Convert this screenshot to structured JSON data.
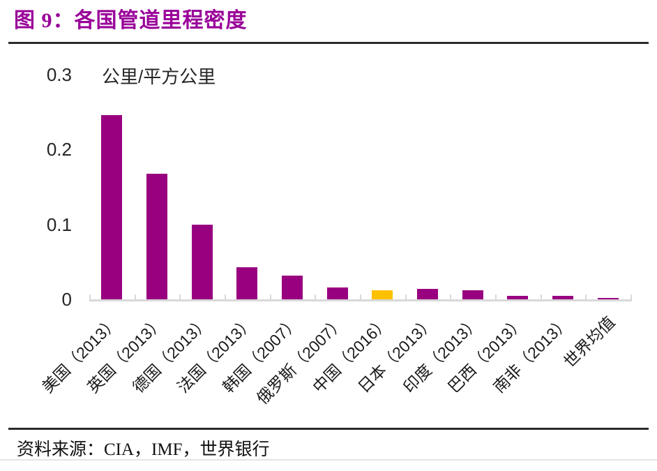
{
  "header": {
    "title": "图 9：各国管道里程密度"
  },
  "footer": {
    "source": "资料来源：CIA，IMF，世界银行"
  },
  "colors": {
    "title": "#990099",
    "bar": "#990080",
    "highlight_bar": "#FFC000",
    "axis": "#D9D9D9",
    "divider": "#2b2b2b",
    "text": "#1a1a1a"
  },
  "chart_data": {
    "type": "bar",
    "title": "图 9：各国管道里程密度",
    "unit_label": "公里/平方公里",
    "xlabel": "",
    "ylabel": "公里/平方公里",
    "categories": [
      "美国（2013）",
      "英国（2013）",
      "德国（2013）",
      "法国（2013）",
      "韩国（2007）",
      "俄罗斯（2007）",
      "中国（2016）",
      "日本（2013）",
      "印度（2013）",
      "巴西（2013）",
      "南非（2013）",
      "世界均值"
    ],
    "values": [
      0.246,
      0.167,
      0.1,
      0.043,
      0.032,
      0.016,
      0.012,
      0.014,
      0.012,
      0.005,
      0.005,
      0.002
    ],
    "bar_colors": [
      "#990080",
      "#990080",
      "#990080",
      "#990080",
      "#990080",
      "#990080",
      "#FFC000",
      "#990080",
      "#990080",
      "#990080",
      "#990080",
      "#990080"
    ],
    "highlight_index": 6,
    "ylim": [
      0,
      0.3
    ],
    "yticks": [
      0,
      0.1,
      0.2,
      0.3
    ],
    "ytick_labels": [
      "0",
      "0.1",
      "0.2",
      "0.3"
    ],
    "grid": false,
    "legend": false,
    "source": "资料来源：CIA，IMF，世界银行"
  }
}
